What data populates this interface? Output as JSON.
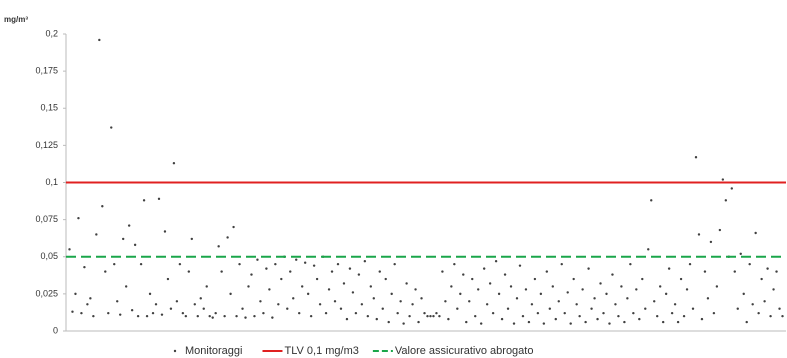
{
  "chart_data": {
    "type": "scatter",
    "y_label": "mg/m³",
    "series": [
      {
        "name": "Monitoraggi",
        "color": "#404040",
        "values": [
          0.055,
          0.013,
          0.025,
          0.076,
          0.012,
          0.043,
          0.018,
          0.022,
          0.01,
          0.065,
          0.196,
          0.084,
          0.04,
          0.012,
          0.137,
          0.045,
          0.02,
          0.011,
          0.062,
          0.03,
          0.071,
          0.014,
          0.058,
          0.01,
          0.045,
          0.088,
          0.01,
          0.025,
          0.012,
          0.018,
          0.089,
          0.011,
          0.067,
          0.035,
          0.015,
          0.113,
          0.02,
          0.045,
          0.012,
          0.01,
          0.04,
          0.062,
          0.018,
          0.01,
          0.022,
          0.015,
          0.03,
          0.01,
          0.009,
          0.012,
          0.057,
          0.04,
          0.01,
          0.063,
          0.025,
          0.07,
          0.01,
          0.045,
          0.015,
          0.009,
          0.03,
          0.038,
          0.01,
          0.048,
          0.02,
          0.012,
          0.042,
          0.028,
          0.009,
          0.045,
          0.018,
          0.035,
          0.05,
          0.015,
          0.04,
          0.022,
          0.048,
          0.012,
          0.03,
          0.046,
          0.025,
          0.01,
          0.044,
          0.035,
          0.018,
          0.05,
          0.012,
          0.028,
          0.04,
          0.02,
          0.045,
          0.015,
          0.032,
          0.008,
          0.042,
          0.026,
          0.012,
          0.038,
          0.018,
          0.047,
          0.01,
          0.03,
          0.022,
          0.008,
          0.04,
          0.015,
          0.035,
          0.006,
          0.025,
          0.045,
          0.012,
          0.02,
          0.005,
          0.032,
          0.01,
          0.018,
          0.028,
          0.006,
          0.022,
          0.012,
          0.01,
          0.01,
          0.01,
          0.012,
          0.01,
          0.04,
          0.02,
          0.008,
          0.03,
          0.045,
          0.015,
          0.025,
          0.038,
          0.006,
          0.02,
          0.035,
          0.01,
          0.028,
          0.005,
          0.042,
          0.018,
          0.032,
          0.012,
          0.047,
          0.025,
          0.008,
          0.038,
          0.015,
          0.03,
          0.005,
          0.022,
          0.044,
          0.01,
          0.028,
          0.006,
          0.018,
          0.035,
          0.012,
          0.025,
          0.005,
          0.04,
          0.015,
          0.03,
          0.008,
          0.02,
          0.045,
          0.012,
          0.026,
          0.005,
          0.035,
          0.018,
          0.01,
          0.028,
          0.006,
          0.042,
          0.015,
          0.022,
          0.008,
          0.032,
          0.012,
          0.025,
          0.005,
          0.038,
          0.018,
          0.01,
          0.03,
          0.006,
          0.022,
          0.045,
          0.012,
          0.028,
          0.008,
          0.035,
          0.015,
          0.055,
          0.088,
          0.02,
          0.01,
          0.03,
          0.006,
          0.025,
          0.042,
          0.012,
          0.018,
          0.006,
          0.035,
          0.01,
          0.028,
          0.045,
          0.015,
          0.117,
          0.065,
          0.008,
          0.04,
          0.022,
          0.06,
          0.012,
          0.03,
          0.068,
          0.102,
          0.088,
          0.05,
          0.096,
          0.04,
          0.015,
          0.052,
          0.025,
          0.006,
          0.045,
          0.018,
          0.066,
          0.012,
          0.035,
          0.02,
          0.042,
          0.01,
          0.028,
          0.04,
          0.015,
          0.01
        ]
      }
    ],
    "reference_lines": [
      {
        "name": "TLV 0,1 mg/m3",
        "color": "#e02020",
        "value": 0.1,
        "dashed": false
      },
      {
        "name": "Valore assicurativo abrogato",
        "color": "#1aa64a",
        "value": 0.05,
        "dashed": true
      }
    ],
    "ylim": [
      0,
      0.2
    ],
    "yticks": [
      0,
      {
        "value": 0.025,
        "label": "0,025"
      },
      {
        "value": 0.05,
        "label": "0,05"
      },
      {
        "value": 0.075,
        "label": "0,075"
      },
      {
        "value": 0.1,
        "label": "0,1"
      },
      {
        "value": 0.125,
        "label": "0,125"
      },
      {
        "value": 0.15,
        "label": "0,15"
      },
      {
        "value": 0.175,
        "label": "0,175"
      },
      {
        "value": 0.2,
        "label": "0,2"
      }
    ],
    "grid": false
  }
}
